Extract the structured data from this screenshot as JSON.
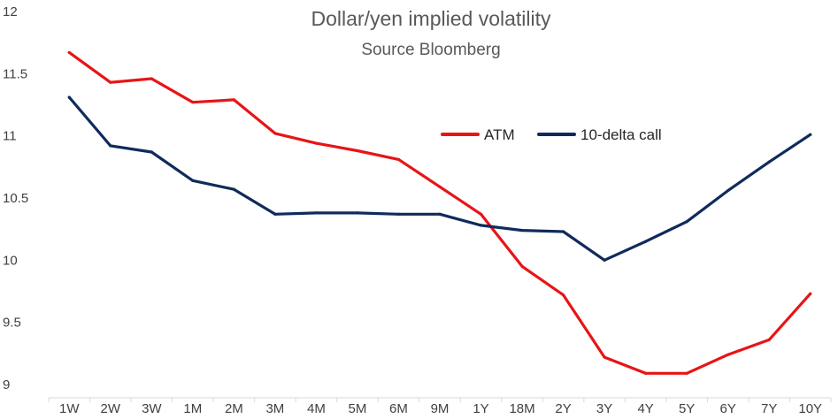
{
  "chart_data": {
    "type": "line",
    "title": "Dollar/yen implied volatility",
    "subtitle": "Source Bloomberg",
    "xlabel": "",
    "ylabel": "",
    "categories": [
      "1W",
      "2W",
      "3W",
      "1M",
      "2M",
      "3M",
      "4M",
      "5M",
      "6M",
      "9M",
      "1Y",
      "18M",
      "2Y",
      "3Y",
      "4Y",
      "5Y",
      "6Y",
      "7Y",
      "10Y"
    ],
    "y_ticks": [
      "12",
      "11.5",
      "11",
      "10.5",
      "10",
      "9.5",
      "9"
    ],
    "ylim": [
      9,
      12
    ],
    "grid": false,
    "legend_position": "top-right",
    "series": [
      {
        "name": "ATM",
        "color": "#e81416",
        "values": [
          11.67,
          11.43,
          11.46,
          11.27,
          11.29,
          11.02,
          10.94,
          10.88,
          10.81,
          10.59,
          10.37,
          9.95,
          9.72,
          9.22,
          9.09,
          9.09,
          9.24,
          9.36,
          9.73
        ]
      },
      {
        "name": "10-delta call",
        "color": "#0f2b5b",
        "values": [
          11.31,
          10.92,
          10.87,
          10.64,
          10.57,
          10.37,
          10.38,
          10.38,
          10.37,
          10.37,
          10.28,
          10.24,
          10.23,
          10.0,
          10.15,
          10.31,
          10.56,
          10.79,
          11.01
        ]
      }
    ]
  }
}
